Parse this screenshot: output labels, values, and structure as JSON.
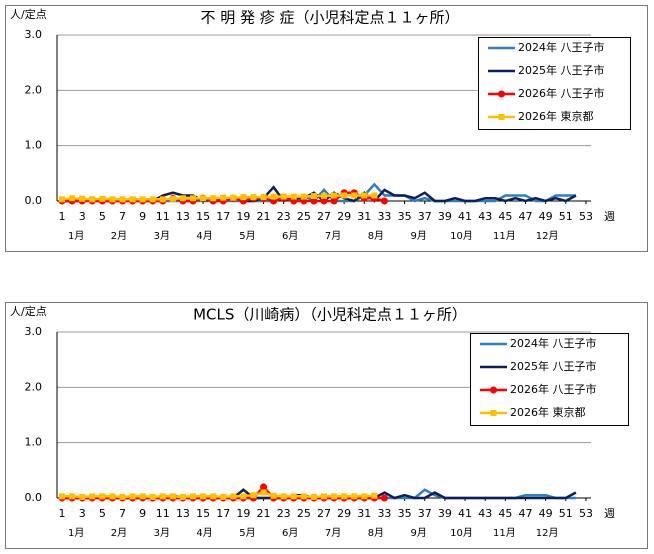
{
  "chart_data": [
    {
      "type": "line",
      "title": "不 明 発 疹 症（小児科定点１１ヶ所）",
      "ylabel": "人/定点",
      "xlabel": "週",
      "x": [
        1,
        2,
        3,
        4,
        5,
        6,
        7,
        8,
        9,
        10,
        11,
        12,
        13,
        14,
        15,
        16,
        17,
        18,
        19,
        20,
        21,
        22,
        23,
        24,
        25,
        26,
        27,
        28,
        29,
        30,
        31,
        32,
        33,
        34,
        35,
        36,
        37,
        38,
        39,
        40,
        41,
        42,
        43,
        44,
        45,
        46,
        47,
        48,
        49,
        50,
        51,
        52,
        53
      ],
      "xlim": [
        0.5,
        53.5
      ],
      "xticks": [
        1,
        3,
        5,
        7,
        9,
        11,
        13,
        15,
        17,
        19,
        21,
        23,
        25,
        27,
        29,
        31,
        33,
        35,
        37,
        39,
        41,
        43,
        45,
        47,
        49,
        51,
        53
      ],
      "ylim": [
        0,
        3
      ],
      "yticks": [
        {
          "value": 0,
          "label": "0.0"
        },
        {
          "value": 1,
          "label": "1.0"
        },
        {
          "value": 2,
          "label": "2.0"
        },
        {
          "value": 3,
          "label": "3.0"
        }
      ],
      "months": [
        "1月",
        "2月",
        "3月",
        "4月",
        "5月",
        "6月",
        "7月",
        "8月",
        "9月",
        "10月",
        "11月",
        "12月"
      ],
      "grid": true,
      "legend": "upper right",
      "series": [
        {
          "name": "2024年 八王子市",
          "color": "#2e7fc0",
          "marker": "none",
          "values": [
            0,
            0,
            0.05,
            0,
            0,
            0,
            0,
            0,
            0,
            0,
            0,
            0,
            0,
            0,
            0,
            0,
            0,
            0,
            0,
            0,
            0,
            0,
            0.05,
            0,
            0.1,
            0,
            0.2,
            0,
            0,
            0,
            0.1,
            0.3,
            0.1,
            0.1,
            0.1,
            0,
            0.05,
            0,
            0,
            0,
            0,
            0,
            0,
            0,
            0.1,
            0.1,
            0.1,
            0,
            0,
            0.1,
            0.1,
            0.1,
            null
          ]
        },
        {
          "name": "2025年 八王子市",
          "color": "#0d1f5a",
          "marker": "none",
          "values": [
            0,
            0,
            0,
            0.05,
            0,
            0.05,
            0,
            0.05,
            0,
            0,
            0.1,
            0.15,
            0.1,
            0.1,
            0,
            0.05,
            0,
            0.05,
            0,
            0,
            0.05,
            0.25,
            0,
            0.05,
            0.05,
            0.15,
            0,
            0.15,
            0.05,
            0,
            0.15,
            0,
            0.2,
            0.1,
            0.1,
            0.05,
            0.15,
            0,
            0,
            0.05,
            0,
            0,
            0.05,
            0.05,
            0,
            0.05,
            0,
            0.05,
            0,
            0.05,
            0,
            0.1,
            null
          ]
        },
        {
          "name": "2026年 八王子市",
          "color": "#ff0000",
          "marker": "circle",
          "values": [
            0,
            0,
            0,
            0,
            0,
            0,
            0,
            0,
            0,
            0,
            0,
            0.05,
            0,
            0,
            0.05,
            0,
            0,
            0.05,
            0,
            0.05,
            0.05,
            0,
            0.05,
            0,
            0,
            0,
            0,
            0,
            0.15,
            0.15,
            0.05,
            0.05,
            0,
            null,
            null,
            null,
            null,
            null,
            null,
            null,
            null,
            null,
            null,
            null,
            null,
            null,
            null,
            null,
            null,
            null,
            null,
            null,
            null
          ]
        },
        {
          "name": "2026年 東京都",
          "color": "#ffc000",
          "marker": "square",
          "values": [
            0.03,
            0.05,
            0.04,
            0.03,
            0.04,
            0.03,
            0.03,
            0.03,
            0.03,
            0.03,
            0.03,
            0.04,
            0.05,
            0.05,
            0.05,
            0.05,
            0.06,
            0.06,
            0.07,
            0.07,
            0.07,
            0.08,
            0.08,
            0.08,
            0.08,
            0.09,
            0.09,
            0.1,
            0.1,
            0.1,
            0.1,
            0.1,
            null,
            null,
            null,
            null,
            null,
            null,
            null,
            null,
            null,
            null,
            null,
            null,
            null,
            null,
            null,
            null,
            null,
            null,
            null,
            null,
            null
          ]
        }
      ]
    },
    {
      "type": "line",
      "title": "MCLS（川崎病）（小児科定点１１ヶ所）",
      "ylabel": "人/定点",
      "xlabel": "週",
      "x": [
        1,
        2,
        3,
        4,
        5,
        6,
        7,
        8,
        9,
        10,
        11,
        12,
        13,
        14,
        15,
        16,
        17,
        18,
        19,
        20,
        21,
        22,
        23,
        24,
        25,
        26,
        27,
        28,
        29,
        30,
        31,
        32,
        33,
        34,
        35,
        36,
        37,
        38,
        39,
        40,
        41,
        42,
        43,
        44,
        45,
        46,
        47,
        48,
        49,
        50,
        51,
        52,
        53
      ],
      "xlim": [
        0.5,
        53.5
      ],
      "xticks": [
        1,
        3,
        5,
        7,
        9,
        11,
        13,
        15,
        17,
        19,
        21,
        23,
        25,
        27,
        29,
        31,
        33,
        35,
        37,
        39,
        41,
        43,
        45,
        47,
        49,
        51,
        53
      ],
      "ylim": [
        0,
        3
      ],
      "yticks": [
        {
          "value": 0,
          "label": "0.0"
        },
        {
          "value": 1,
          "label": "1.0"
        },
        {
          "value": 2,
          "label": "2.0"
        },
        {
          "value": 3,
          "label": "3.0"
        }
      ],
      "months": [
        "1月",
        "2月",
        "3月",
        "4月",
        "5月",
        "6月",
        "7月",
        "8月",
        "9月",
        "10月",
        "11月",
        "12月"
      ],
      "grid": true,
      "legend": "upper right",
      "series": [
        {
          "name": "2024年 八王子市",
          "color": "#2e7fc0",
          "marker": "none",
          "values": [
            0,
            0,
            0,
            0,
            0.05,
            0,
            0,
            0,
            0,
            0,
            0,
            0,
            0,
            0,
            0,
            0,
            0,
            0,
            0,
            0,
            0,
            0,
            0,
            0,
            0,
            0,
            0,
            0,
            0,
            0,
            0,
            0,
            0,
            0,
            0,
            0,
            0.15,
            0.05,
            0,
            0,
            0,
            0,
            0,
            0,
            0,
            0,
            0.05,
            0.05,
            0.05,
            0,
            0,
            0,
            null
          ]
        },
        {
          "name": "2025年 八王子市",
          "color": "#0d1f5a",
          "marker": "none",
          "values": [
            0,
            0,
            0,
            0,
            0,
            0,
            0,
            0,
            0,
            0,
            0,
            0.05,
            0,
            0,
            0,
            0,
            0,
            0,
            0.15,
            0,
            0,
            0,
            0,
            0.05,
            0.05,
            0,
            0,
            0,
            0,
            0,
            0,
            0,
            0.1,
            0,
            0.05,
            0,
            0,
            0.1,
            0,
            0,
            0,
            0,
            0,
            0,
            0,
            0,
            0,
            0,
            0,
            0,
            0,
            0.1,
            null
          ]
        },
        {
          "name": "2026年 八王子市",
          "color": "#ff0000",
          "marker": "circle",
          "values": [
            0,
            0,
            0,
            0,
            0,
            0,
            0,
            0,
            0,
            0,
            0,
            0,
            0,
            0,
            0,
            0,
            0,
            0,
            0,
            0,
            0.2,
            0,
            0,
            0,
            0,
            0,
            0,
            0,
            0,
            0,
            0,
            0,
            0,
            null,
            null,
            null,
            null,
            null,
            null,
            null,
            null,
            null,
            null,
            null,
            null,
            null,
            null,
            null,
            null,
            null,
            null,
            null,
            null
          ]
        },
        {
          "name": "2026年 東京都",
          "color": "#ffc000",
          "marker": "square",
          "values": [
            0.03,
            0.03,
            0.02,
            0.03,
            0.03,
            0.03,
            0.02,
            0.03,
            0.03,
            0.02,
            0.03,
            0.03,
            0.02,
            0.03,
            0.03,
            0.03,
            0.02,
            0.03,
            0.03,
            0.05,
            0.1,
            0.04,
            0.03,
            0.03,
            0.03,
            0.02,
            0.03,
            0.03,
            0.03,
            0.03,
            0.03,
            0.04,
            null,
            null,
            null,
            null,
            null,
            null,
            null,
            null,
            null,
            null,
            null,
            null,
            null,
            null,
            null,
            null,
            null,
            null,
            null,
            null,
            null
          ]
        }
      ]
    }
  ]
}
